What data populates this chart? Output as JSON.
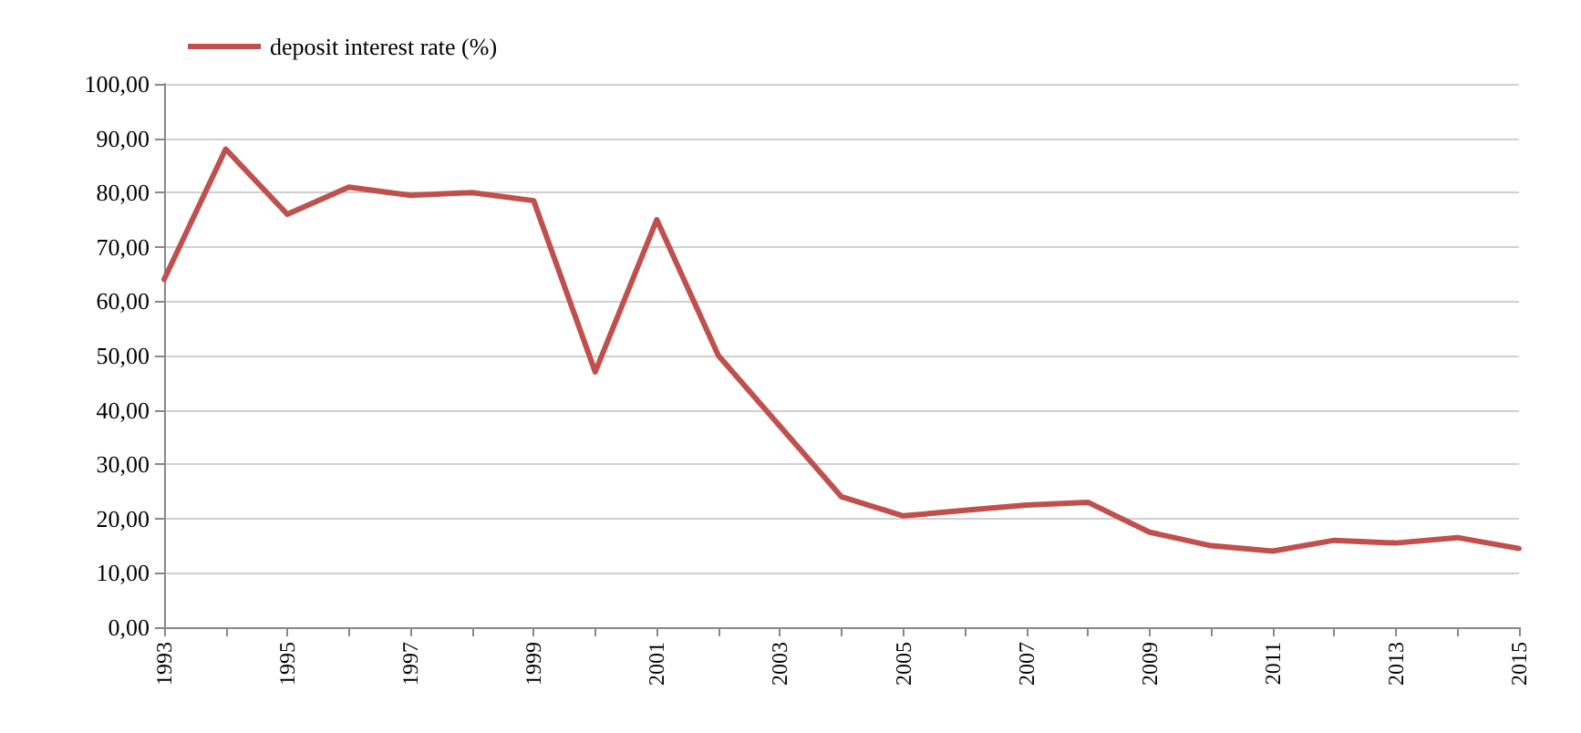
{
  "chart_data": {
    "type": "line",
    "categories": [
      "1993",
      null,
      "1995",
      null,
      "1997",
      null,
      "1999",
      null,
      "2001",
      null,
      "2003",
      null,
      "2005",
      null,
      "2007",
      null,
      "2009",
      null,
      "2011",
      null,
      "2013",
      null,
      "2015"
    ],
    "series": [
      {
        "name": "deposit interest rate (%)",
        "color": "#c0504d",
        "values": [
          64,
          88,
          76,
          81,
          79.5,
          80,
          78.5,
          47,
          75,
          50,
          37,
          24,
          20.5,
          21.5,
          22.5,
          23,
          17.5,
          15,
          14,
          16,
          15.5,
          16.5,
          14.5
        ]
      }
    ],
    "ylim": [
      0,
      100
    ],
    "yticks": [
      {
        "value": 0,
        "label": "0,00"
      },
      {
        "value": 10,
        "label": "10,00"
      },
      {
        "value": 20,
        "label": "20,00"
      },
      {
        "value": 30,
        "label": "30,00"
      },
      {
        "value": 40,
        "label": "40,00"
      },
      {
        "value": 50,
        "label": "50,00"
      },
      {
        "value": 60,
        "label": "60,00"
      },
      {
        "value": 70,
        "label": "70,00"
      },
      {
        "value": 80,
        "label": "80,00"
      },
      {
        "value": 90,
        "label": "90,00"
      },
      {
        "value": 100,
        "label": "100,00"
      }
    ],
    "grid": "y",
    "legend": "top left",
    "marker": "none",
    "line_style": "solid"
  }
}
